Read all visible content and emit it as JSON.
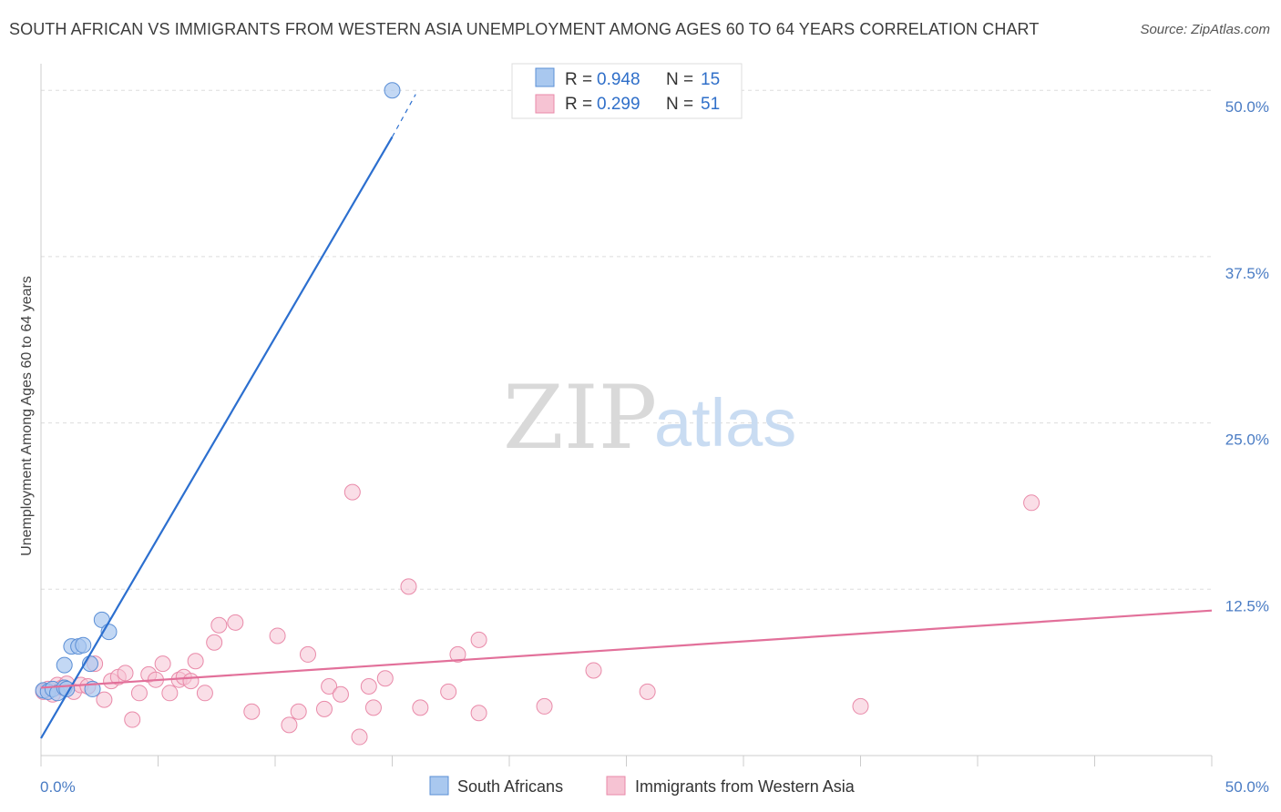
{
  "header": {
    "title": "SOUTH AFRICAN VS IMMIGRANTS FROM WESTERN ASIA UNEMPLOYMENT AMONG AGES 60 TO 64 YEARS CORRELATION CHART",
    "source": "Source: ZipAtlas.com"
  },
  "watermark": {
    "zip": "ZIP",
    "atlas": "atlas"
  },
  "legend": {
    "r_label": "R =",
    "n_label": "N =",
    "series": [
      {
        "r": "0.948",
        "n": "15"
      },
      {
        "r": "0.299",
        "n": "51"
      }
    ]
  },
  "colors": {
    "blue_fill": "#a9c8ef",
    "blue_stroke": "#5b8fd6",
    "blue_line": "#2c6fcf",
    "pink_fill": "#f6c3d3",
    "pink_stroke": "#e98aa9",
    "pink_line": "#e2709a",
    "grid": "#dddddd"
  },
  "chart_data": {
    "type": "scatter",
    "title": "SOUTH AFRICAN VS IMMIGRANTS FROM WESTERN ASIA UNEMPLOYMENT AMONG AGES 60 TO 64 YEARS CORRELATION CHART",
    "xlabel": "",
    "ylabel": "Unemployment Among Ages 60 to 64 years",
    "xlim": [
      0,
      50
    ],
    "ylim": [
      0,
      52
    ],
    "x_tick_labels": [
      "0.0%",
      "50.0%"
    ],
    "y_ticks": [
      {
        "value": 12.5,
        "label": "12.5%"
      },
      {
        "value": 25.0,
        "label": "25.0%"
      },
      {
        "value": 37.5,
        "label": "37.5%"
      },
      {
        "value": 50.0,
        "label": "50.0%"
      }
    ],
    "legend_position": "top-center",
    "series": [
      {
        "name": "South Africans",
        "color": "#5b8fd6",
        "points": [
          {
            "x": 0.1,
            "y": 4.9
          },
          {
            "x": 0.3,
            "y": 4.8
          },
          {
            "x": 0.5,
            "y": 5.0
          },
          {
            "x": 0.7,
            "y": 4.7
          },
          {
            "x": 1.0,
            "y": 5.1
          },
          {
            "x": 1.0,
            "y": 6.8
          },
          {
            "x": 1.1,
            "y": 5.0
          },
          {
            "x": 1.3,
            "y": 8.2
          },
          {
            "x": 1.6,
            "y": 8.2
          },
          {
            "x": 1.8,
            "y": 8.3
          },
          {
            "x": 2.1,
            "y": 6.9
          },
          {
            "x": 2.2,
            "y": 5.0
          },
          {
            "x": 2.6,
            "y": 10.2
          },
          {
            "x": 2.9,
            "y": 9.3
          },
          {
            "x": 15.0,
            "y": 50.0
          }
        ],
        "trend": {
          "x0": 0.0,
          "y0": 1.3,
          "x1": 15.0,
          "y1": 46.5,
          "dash_x1": 16.0,
          "dash_y1": 49.7
        }
      },
      {
        "name": "Immigrants from Western Asia",
        "color": "#e98aa9",
        "points": [
          {
            "x": 0.1,
            "y": 4.8
          },
          {
            "x": 0.3,
            "y": 5.0
          },
          {
            "x": 0.5,
            "y": 4.6
          },
          {
            "x": 0.7,
            "y": 5.3
          },
          {
            "x": 0.9,
            "y": 5.1
          },
          {
            "x": 1.1,
            "y": 5.4
          },
          {
            "x": 1.4,
            "y": 4.8
          },
          {
            "x": 1.7,
            "y": 5.3
          },
          {
            "x": 2.0,
            "y": 5.2
          },
          {
            "x": 2.3,
            "y": 6.9
          },
          {
            "x": 2.7,
            "y": 4.2
          },
          {
            "x": 3.0,
            "y": 5.6
          },
          {
            "x": 3.3,
            "y": 5.9
          },
          {
            "x": 3.6,
            "y": 6.2
          },
          {
            "x": 3.9,
            "y": 2.7
          },
          {
            "x": 4.2,
            "y": 4.7
          },
          {
            "x": 4.6,
            "y": 6.1
          },
          {
            "x": 4.9,
            "y": 5.7
          },
          {
            "x": 5.2,
            "y": 6.9
          },
          {
            "x": 5.5,
            "y": 4.7
          },
          {
            "x": 5.9,
            "y": 5.7
          },
          {
            "x": 6.1,
            "y": 5.9
          },
          {
            "x": 6.4,
            "y": 5.6
          },
          {
            "x": 6.6,
            "y": 7.1
          },
          {
            "x": 7.0,
            "y": 4.7
          },
          {
            "x": 7.4,
            "y": 8.5
          },
          {
            "x": 7.6,
            "y": 9.8
          },
          {
            "x": 8.3,
            "y": 10.0
          },
          {
            "x": 9.0,
            "y": 3.3
          },
          {
            "x": 10.1,
            "y": 9.0
          },
          {
            "x": 10.6,
            "y": 2.3
          },
          {
            "x": 11.0,
            "y": 3.3
          },
          {
            "x": 11.4,
            "y": 7.6
          },
          {
            "x": 12.1,
            "y": 3.5
          },
          {
            "x": 12.3,
            "y": 5.2
          },
          {
            "x": 12.8,
            "y": 4.6
          },
          {
            "x": 13.3,
            "y": 19.8
          },
          {
            "x": 13.6,
            "y": 1.4
          },
          {
            "x": 14.0,
            "y": 5.2
          },
          {
            "x": 14.2,
            "y": 3.6
          },
          {
            "x": 14.7,
            "y": 5.8
          },
          {
            "x": 15.7,
            "y": 12.7
          },
          {
            "x": 16.2,
            "y": 3.6
          },
          {
            "x": 17.4,
            "y": 4.8
          },
          {
            "x": 17.8,
            "y": 7.6
          },
          {
            "x": 18.7,
            "y": 3.2
          },
          {
            "x": 18.7,
            "y": 8.7
          },
          {
            "x": 21.5,
            "y": 3.7
          },
          {
            "x": 23.6,
            "y": 6.4
          },
          {
            "x": 25.9,
            "y": 4.8
          },
          {
            "x": 35.0,
            "y": 3.7
          },
          {
            "x": 42.3,
            "y": 19.0
          }
        ],
        "trend": {
          "x0": 0.0,
          "y0": 5.1,
          "x1": 50.0,
          "y1": 10.9
        }
      }
    ]
  }
}
